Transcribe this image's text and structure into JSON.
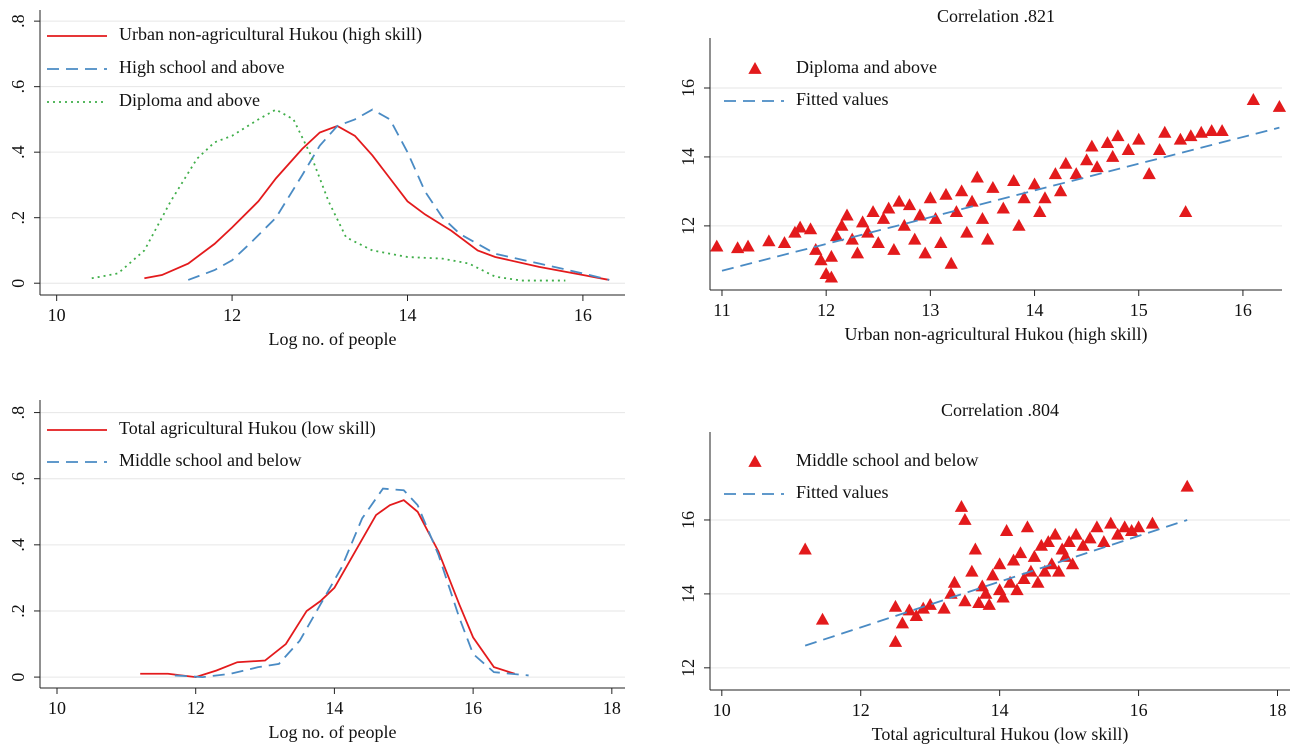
{
  "chart_data": [
    {
      "type": "line",
      "x_label": "Log no. of people",
      "xlim": [
        9.81,
        16.48
      ],
      "ylim": [
        -0.036,
        0.834
      ],
      "xticks": [
        10,
        12,
        14,
        16
      ],
      "yticks": [
        0,
        {
          "value": 0.2,
          "label": ".2"
        },
        {
          "value": 0.4,
          "label": ".4"
        },
        {
          "value": 0.6,
          "label": ".6"
        },
        {
          "value": 0.8,
          "label": ".8"
        }
      ],
      "grid": true,
      "series": [
        {
          "name": "Urban non-agricultural Hukou (high skill)",
          "color": "#e31a1c",
          "style": "solid",
          "x": [
            11,
            11.2,
            11.5,
            11.8,
            12,
            12.3,
            12.5,
            12.8,
            13,
            13.2,
            13.4,
            13.6,
            13.8,
            14,
            14.2,
            14.5,
            14.8,
            15,
            15.5,
            16,
            16.3
          ],
          "values": [
            0.015,
            0.025,
            0.06,
            0.12,
            0.17,
            0.25,
            0.32,
            0.41,
            0.46,
            0.48,
            0.45,
            0.39,
            0.32,
            0.25,
            0.21,
            0.16,
            0.1,
            0.08,
            0.05,
            0.025,
            0.01
          ]
        },
        {
          "name": "High school and above",
          "color": "#4a8bc4",
          "style": "dashed",
          "x": [
            11.5,
            11.8,
            12,
            12.2,
            12.5,
            12.8,
            13,
            13.2,
            13.4,
            13.6,
            13.8,
            14,
            14.2,
            14.4,
            14.6,
            15,
            15.5,
            16,
            16.3
          ],
          "values": [
            0.01,
            0.04,
            0.07,
            0.12,
            0.2,
            0.33,
            0.42,
            0.48,
            0.5,
            0.53,
            0.5,
            0.4,
            0.28,
            0.2,
            0.15,
            0.09,
            0.06,
            0.03,
            0.01
          ]
        },
        {
          "name": "Diploma and above",
          "color": "#3fae49",
          "style": "dotted",
          "x": [
            10.4,
            10.7,
            11,
            11.3,
            11.6,
            11.8,
            12,
            12.3,
            12.5,
            12.7,
            12.9,
            13.1,
            13.3,
            13.6,
            14,
            14.4,
            14.7,
            15,
            15.3,
            15.8
          ],
          "values": [
            0.015,
            0.03,
            0.1,
            0.25,
            0.38,
            0.43,
            0.45,
            0.5,
            0.53,
            0.5,
            0.39,
            0.25,
            0.14,
            0.1,
            0.08,
            0.075,
            0.06,
            0.02,
            0.008,
            0.008
          ]
        }
      ]
    },
    {
      "type": "scatter",
      "title": "Correlation .821",
      "x_label": "Urban non-agricultural Hukou (high skill)",
      "xlim": [
        10.885,
        16.375
      ],
      "ylim": [
        10.14,
        17.45
      ],
      "xticks": [
        11,
        12,
        13,
        14,
        15,
        16
      ],
      "yticks": [
        12,
        14,
        16
      ],
      "grid": true,
      "series": [
        {
          "name": "Diploma and above",
          "color": "#e31a1c",
          "marker": "triangle",
          "x": [
            10.95,
            11.15,
            11.25,
            11.45,
            11.6,
            11.7,
            11.75,
            11.85,
            11.9,
            11.95,
            12.0,
            12.05,
            12.05,
            12.1,
            12.15,
            12.2,
            12.25,
            12.3,
            12.35,
            12.4,
            12.45,
            12.5,
            12.55,
            12.6,
            12.65,
            12.7,
            12.75,
            12.8,
            12.85,
            12.9,
            12.95,
            13.0,
            13.05,
            13.1,
            13.15,
            13.2,
            13.25,
            13.3,
            13.35,
            13.4,
            13.45,
            13.5,
            13.55,
            13.6,
            13.7,
            13.8,
            13.85,
            13.9,
            14.0,
            14.05,
            14.1,
            14.2,
            14.25,
            14.3,
            14.4,
            14.5,
            14.55,
            14.6,
            14.7,
            14.75,
            14.8,
            14.9,
            15.0,
            15.1,
            15.2,
            15.25,
            15.4,
            15.45,
            15.5,
            15.6,
            15.7,
            15.8,
            16.1,
            16.35
          ],
          "values": [
            11.4,
            11.35,
            11.4,
            11.55,
            11.5,
            11.8,
            11.95,
            11.9,
            11.3,
            11.0,
            10.6,
            10.5,
            11.1,
            11.7,
            12.0,
            12.3,
            11.6,
            11.2,
            12.1,
            11.8,
            12.4,
            11.5,
            12.2,
            12.5,
            11.3,
            12.7,
            12.0,
            12.6,
            11.6,
            12.3,
            11.2,
            12.8,
            12.2,
            11.5,
            12.9,
            10.9,
            12.4,
            13.0,
            11.8,
            12.7,
            13.4,
            12.2,
            11.6,
            13.1,
            12.5,
            13.3,
            12.0,
            12.8,
            13.2,
            12.4,
            12.8,
            13.5,
            13.0,
            13.8,
            13.5,
            13.9,
            14.3,
            13.7,
            14.4,
            14.0,
            14.6,
            14.2,
            14.5,
            13.5,
            14.2,
            14.7,
            14.5,
            12.4,
            14.6,
            14.7,
            14.75,
            14.75,
            15.65,
            15.45
          ]
        },
        {
          "name": "Fitted values",
          "color": "#4a8bc4",
          "style": "dashed",
          "x": [
            11,
            16.35
          ],
          "values": [
            10.7,
            14.85
          ]
        }
      ]
    },
    {
      "type": "line",
      "x_label": "Log no. of people",
      "xlim": [
        9.755,
        18.19
      ],
      "ylim": [
        -0.033,
        0.838
      ],
      "xticks": [
        10,
        12,
        14,
        16,
        18
      ],
      "yticks": [
        0,
        {
          "value": 0.2,
          "label": ".2"
        },
        {
          "value": 0.4,
          "label": ".4"
        },
        {
          "value": 0.6,
          "label": ".6"
        },
        {
          "value": 0.8,
          "label": ".8"
        }
      ],
      "grid": true,
      "series": [
        {
          "name": "Total agricultural Hukou (low skill)",
          "color": "#e31a1c",
          "style": "solid",
          "x": [
            11.2,
            11.6,
            12,
            12.3,
            12.6,
            13,
            13.3,
            13.6,
            13.8,
            14,
            14.3,
            14.6,
            14.8,
            15,
            15.2,
            15.5,
            15.8,
            16,
            16.3,
            16.6
          ],
          "values": [
            0.01,
            0.01,
            0.0,
            0.02,
            0.045,
            0.05,
            0.1,
            0.2,
            0.23,
            0.27,
            0.38,
            0.49,
            0.52,
            0.535,
            0.5,
            0.38,
            0.22,
            0.12,
            0.03,
            0.01
          ]
        },
        {
          "name": "Middle school and below",
          "color": "#4a8bc4",
          "style": "dashed",
          "x": [
            11.7,
            12.1,
            12.5,
            12.9,
            13.2,
            13.5,
            13.8,
            14.1,
            14.4,
            14.7,
            15,
            15.2,
            15.5,
            15.8,
            16,
            16.3,
            16.8
          ],
          "values": [
            0.005,
            0.0,
            0.01,
            0.03,
            0.04,
            0.11,
            0.22,
            0.33,
            0.48,
            0.57,
            0.565,
            0.52,
            0.37,
            0.18,
            0.07,
            0.015,
            0.005
          ]
        }
      ]
    },
    {
      "type": "scatter",
      "title": "Correlation .804",
      "x_label": "Total agricultural Hukou (low skill)",
      "xlim": [
        9.83,
        18.18
      ],
      "ylim": [
        11.4,
        18.38
      ],
      "xticks": [
        10,
        12,
        14,
        16,
        18
      ],
      "yticks": [
        12,
        14,
        16
      ],
      "grid": true,
      "series": [
        {
          "name": "Middle school and below",
          "color": "#e31a1c",
          "marker": "triangle",
          "x": [
            11.2,
            11.45,
            12.5,
            12.5,
            12.6,
            12.7,
            12.8,
            12.9,
            13.0,
            13.2,
            13.3,
            13.35,
            13.45,
            13.5,
            13.5,
            13.6,
            13.65,
            13.7,
            13.75,
            13.8,
            13.85,
            13.9,
            14.0,
            14.0,
            14.05,
            14.1,
            14.15,
            14.2,
            14.25,
            14.3,
            14.35,
            14.4,
            14.45,
            14.5,
            14.55,
            14.6,
            14.65,
            14.7,
            14.75,
            14.8,
            14.85,
            14.9,
            14.95,
            15.0,
            15.05,
            15.1,
            15.2,
            15.3,
            15.4,
            15.5,
            15.6,
            15.7,
            15.8,
            15.9,
            16.0,
            16.2,
            16.7
          ],
          "values": [
            15.2,
            13.3,
            12.7,
            13.65,
            13.2,
            13.55,
            13.4,
            13.6,
            13.7,
            13.6,
            14.0,
            14.3,
            16.35,
            16.0,
            13.8,
            14.6,
            15.2,
            13.75,
            14.2,
            14.0,
            13.7,
            14.5,
            14.1,
            14.8,
            13.9,
            15.7,
            14.3,
            14.9,
            14.1,
            15.1,
            14.4,
            15.8,
            14.6,
            15.0,
            14.3,
            15.3,
            14.6,
            15.4,
            14.8,
            15.6,
            14.6,
            15.2,
            15.0,
            15.4,
            14.8,
            15.6,
            15.3,
            15.5,
            15.8,
            15.4,
            15.9,
            15.6,
            15.8,
            15.7,
            15.8,
            15.9,
            16.9
          ]
        },
        {
          "name": "Fitted values",
          "color": "#4a8bc4",
          "style": "dashed",
          "x": [
            11.2,
            16.7
          ],
          "values": [
            12.6,
            16.0
          ]
        }
      ]
    }
  ]
}
